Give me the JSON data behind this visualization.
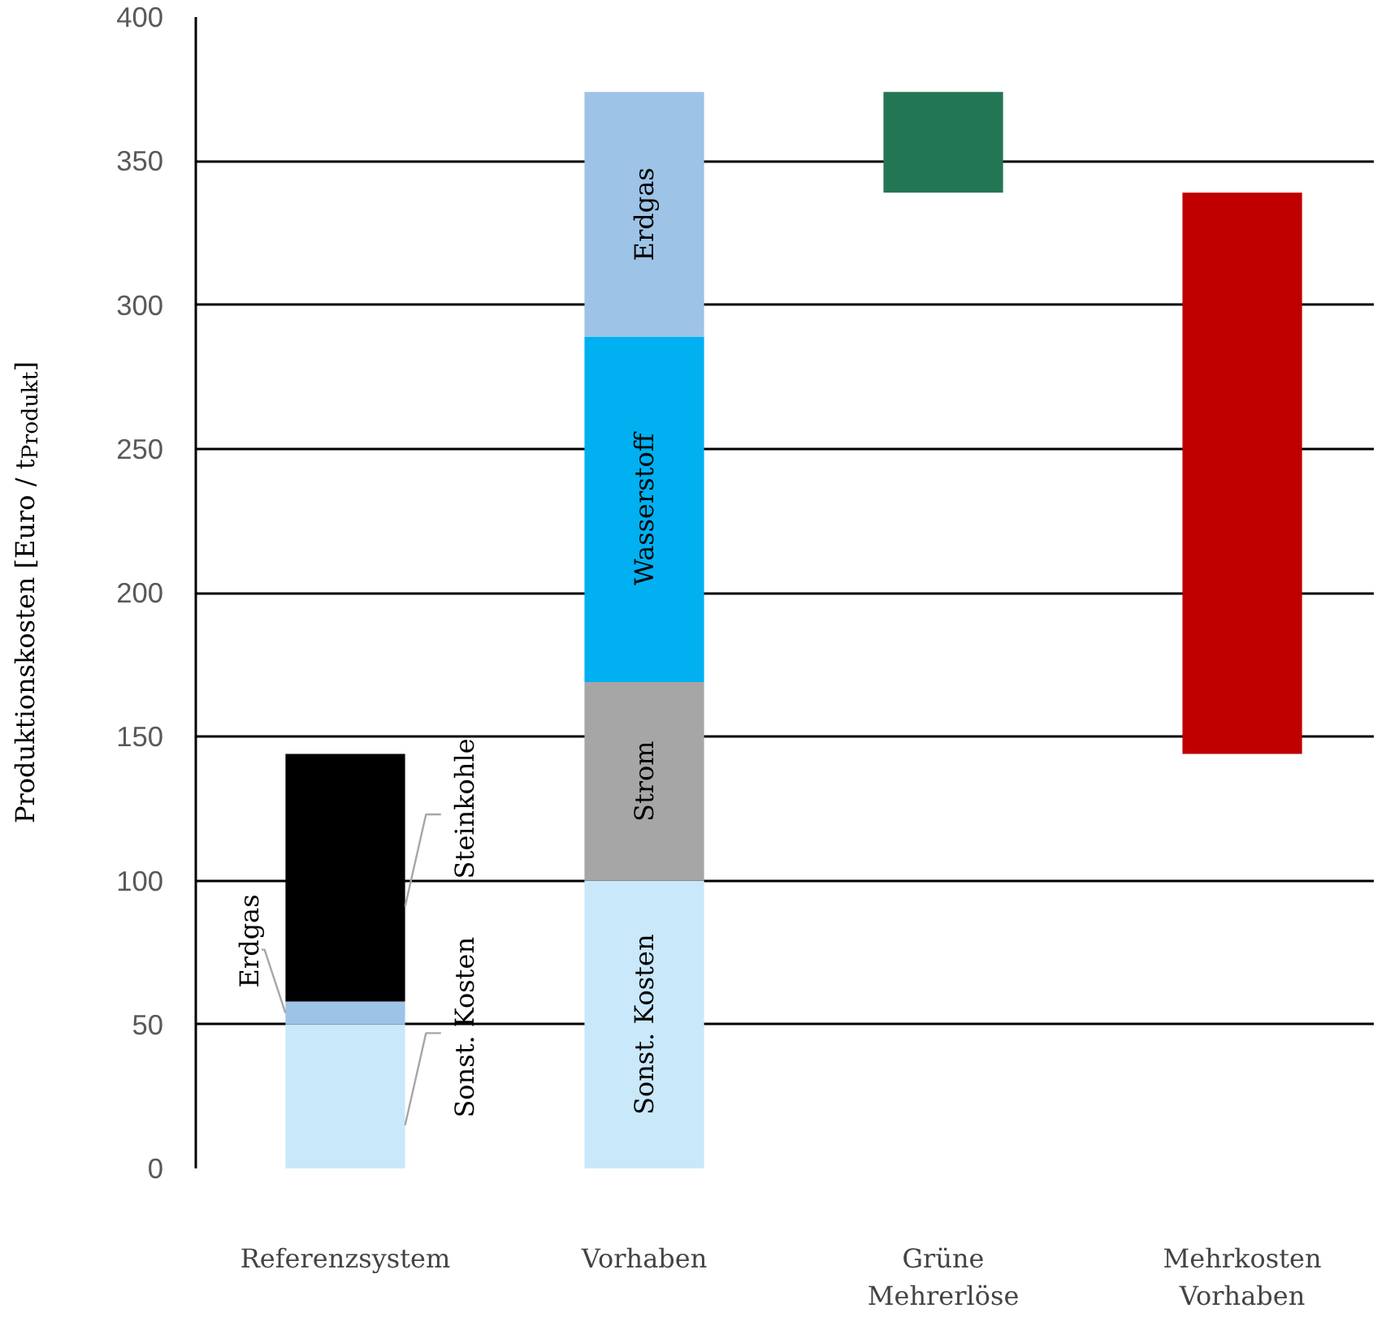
{
  "chart_data": {
    "type": "bar",
    "stacked": true,
    "ylabel": "Produktionskosten [Euro / t$_{Produkt}$]",
    "categories": [
      "Referenzsystem",
      "Vorhaben",
      "Grüne\nMehrerlöse",
      "Mehrkosten\nVorhaben"
    ],
    "ylim": [
      0,
      400
    ],
    "yticks": [
      0,
      50,
      100,
      150,
      200,
      250,
      300,
      350,
      400
    ],
    "grid": "y",
    "series": [
      {
        "name": "Sonst. Kosten",
        "color": "#c9e8fa",
        "values": [
          50,
          100,
          null,
          null
        ]
      },
      {
        "name": "Strom",
        "color": "#a6a6a6",
        "values": [
          null,
          69,
          null,
          null
        ]
      },
      {
        "name": "Wasserstoff",
        "color": "#00b0f0",
        "values": [
          null,
          120,
          null,
          null
        ]
      },
      {
        "name": "Erdgas",
        "color": "#9dc3e6",
        "values": [
          8,
          85,
          null,
          null
        ]
      },
      {
        "name": "Steinkohle",
        "color": "#000000",
        "values": [
          86,
          null,
          null,
          null
        ]
      },
      {
        "color": "#237654",
        "values": [
          null,
          null,
          -35,
          null
        ],
        "base": [
          null,
          null,
          374,
          null
        ]
      },
      {
        "color": "#c00000",
        "values": [
          null,
          null,
          null,
          -195
        ],
        "base": [
          null,
          null,
          null,
          339
        ]
      }
    ]
  }
}
